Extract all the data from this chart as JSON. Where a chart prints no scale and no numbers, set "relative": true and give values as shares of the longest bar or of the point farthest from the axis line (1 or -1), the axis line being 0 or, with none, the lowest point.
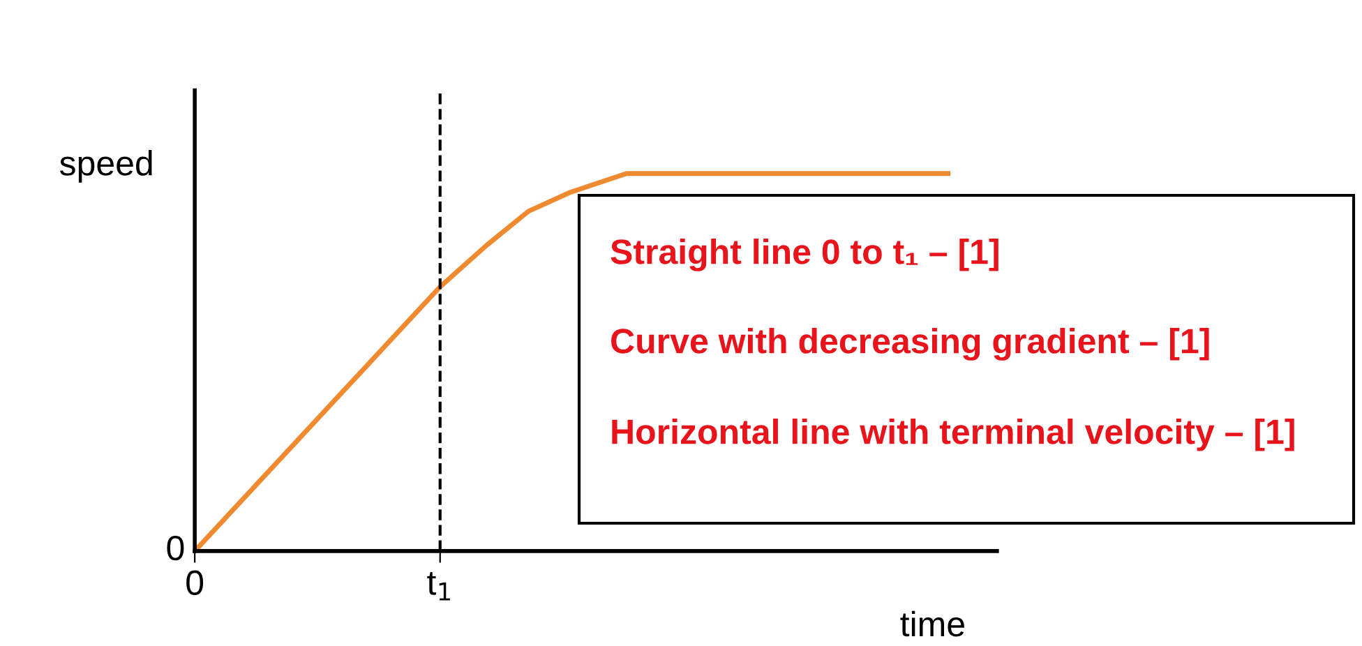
{
  "chart_data": {
    "type": "line",
    "relative": true,
    "xlabel": "time",
    "ylabel": "speed",
    "x": [
      0,
      1,
      1.19,
      1.36,
      1.53,
      1.76,
      3.07
    ],
    "series": [
      {
        "color": "#f08a30",
        "values": [
          0,
          0.7,
          0.81,
          0.9,
          0.95,
          1.0,
          1.0
        ]
      }
    ],
    "xlim": [
      0,
      3.27
    ],
    "xticks": [
      0,
      {
        "value": 1,
        "label": "t$_{1}$"
      }
    ],
    "ref_lines": [
      {
        "axis": "x",
        "value": 1,
        "line_style": "dashed",
        "color": "#000000"
      }
    ],
    "annotations": [
      "0",
      "Straight line 0 to t₁ – [1]",
      "Curve with decreasing gradient – [1]",
      "Horizontal line with terminal velocity – [1]"
    ],
    "grid": false,
    "legend": false,
    "marker": "none",
    "line_style": "solid"
  }
}
